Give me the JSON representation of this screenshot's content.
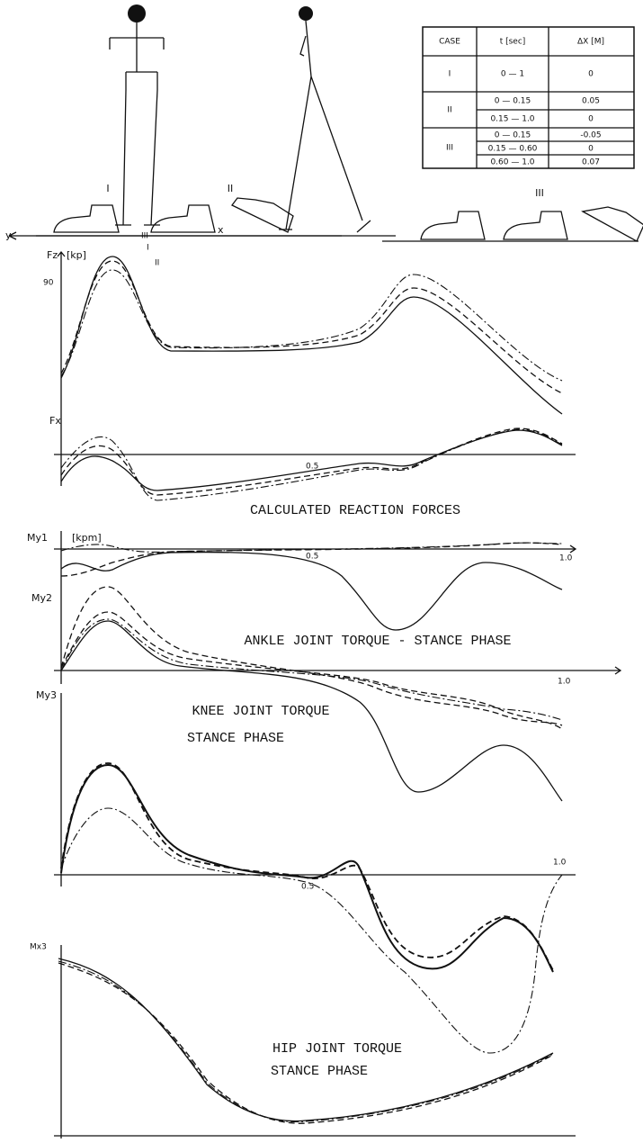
{
  "table": {
    "header": [
      "CASE",
      "t [sec]",
      "ΔX [M]"
    ],
    "rows": [
      [
        "I",
        "0 — 1",
        "0"
      ],
      [
        "II",
        "0 — 0.15",
        "0.05"
      ],
      [
        "",
        "0.15 — 1.0",
        "0"
      ],
      [
        "III",
        "0 — 0.15",
        "-0.05"
      ],
      [
        "",
        "0.15 — 0.60",
        "0"
      ],
      [
        "",
        "0.60 — 1.0",
        "0.07"
      ]
    ]
  },
  "sketch": {
    "axis_y": "y",
    "axis_x": "x"
  },
  "feet": {
    "labels": [
      "I",
      "II",
      "III"
    ]
  },
  "panels": {
    "fz": {
      "label": "Fz",
      "unit": "[kp]",
      "tick": "90",
      "curves": [
        "III",
        "I",
        "II"
      ]
    },
    "fx": {
      "label": "Fx",
      "tick": "0.5"
    },
    "reaction_title": "CALCULATED REACTION FORCES",
    "my1": {
      "label": "My1",
      "unit": "[kpm]",
      "tick_mid": "0.5",
      "tick_end": "1.0"
    },
    "my2": {
      "label": "My2",
      "tick_end": "1.0"
    },
    "ankle_title": "ANKLE JOINT TORQUE - STANCE PHASE",
    "my3": {
      "label": "My3",
      "tick_mid": "0.5",
      "tick_end": "1.0"
    },
    "knee_title": [
      "KNEE JOINT TORQUE",
      "STANCE PHASE"
    ],
    "mx3": {
      "label": "Mx3"
    },
    "hip_title": [
      "HIP JOINT TORQUE",
      "STANCE PHASE"
    ]
  }
}
